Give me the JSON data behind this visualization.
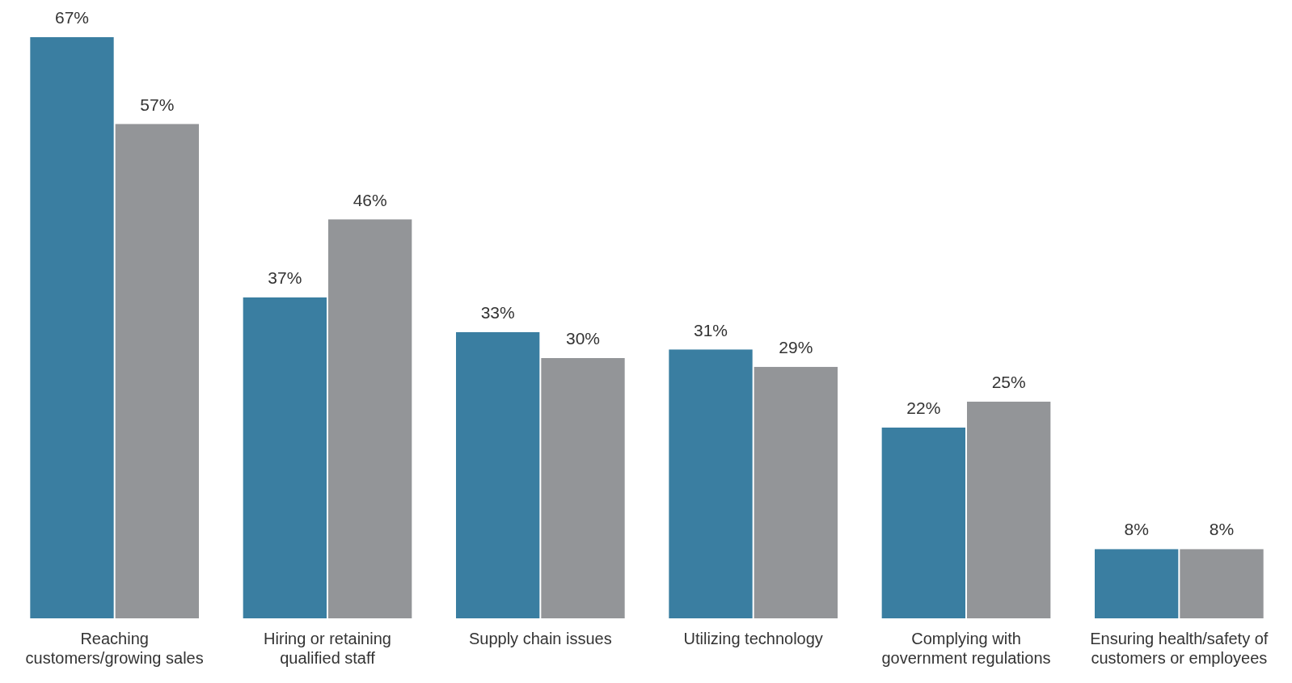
{
  "chart_data": {
    "type": "bar",
    "categories": [
      "Reaching customers/growing sales",
      "Hiring or retaining qualified staff",
      "Supply chain issues",
      "Utilizing technology",
      "Complying with government regulations",
      "Ensuring health/safety of customers or employees"
    ],
    "series": [
      {
        "color": "#3a7ea1",
        "values": [
          67,
          37,
          33,
          31,
          22,
          8
        ],
        "value_labels": [
          "67%",
          "37%",
          "33%",
          "31%",
          "22%",
          "8%"
        ]
      },
      {
        "color": "#939598",
        "values": [
          57,
          46,
          30,
          29,
          25,
          8
        ],
        "value_labels": [
          "57%",
          "46%",
          "30%",
          "29%",
          "25%",
          "8%"
        ]
      }
    ],
    "legend": false,
    "grid": false
  }
}
